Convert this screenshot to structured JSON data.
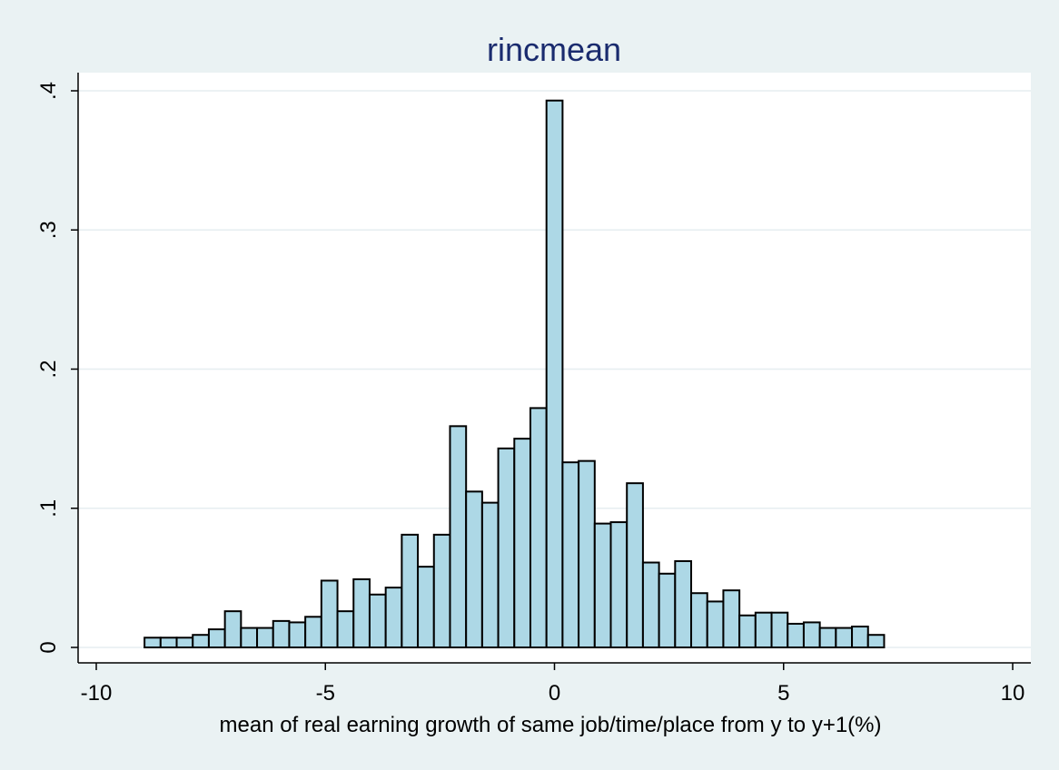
{
  "chart_data": {
    "type": "bar",
    "title": "rincmean",
    "xlabel": "mean of real earning growth of same job/time/place from y to y+1(%)",
    "ylabel": "",
    "xlim": [
      -10,
      10
    ],
    "ylim": [
      0,
      0.4
    ],
    "bin_width": 0.3509,
    "bin_start": -8.947,
    "values": [
      0.007,
      0.007,
      0.007,
      0.009,
      0.013,
      0.026,
      0.014,
      0.014,
      0.019,
      0.018,
      0.022,
      0.048,
      0.026,
      0.049,
      0.038,
      0.043,
      0.081,
      0.058,
      0.081,
      0.159,
      0.112,
      0.104,
      0.143,
      0.15,
      0.172,
      0.393,
      0.133,
      0.134,
      0.089,
      0.09,
      0.118,
      0.061,
      0.053,
      0.062,
      0.039,
      0.033,
      0.041,
      0.023,
      0.025,
      0.025,
      0.017,
      0.018,
      0.014,
      0.014,
      0.015,
      0.009
    ],
    "x_ticks": [
      -10,
      -5,
      0,
      5,
      10
    ],
    "x_tick_labels": [
      "-10",
      "-5",
      "0",
      "5",
      "10"
    ],
    "y_ticks": [
      0,
      0.1,
      0.2,
      0.3,
      0.4
    ],
    "y_tick_labels": [
      "0",
      ".1",
      ".2",
      ".3",
      ".4"
    ],
    "grid": true,
    "colors": {
      "background": "#eaf2f3",
      "plot_background": "#ffffff",
      "bar_fill": "#add8e6",
      "bar_stroke": "#000000",
      "grid": "#e6eef0",
      "title": "#1a2b6e"
    }
  }
}
